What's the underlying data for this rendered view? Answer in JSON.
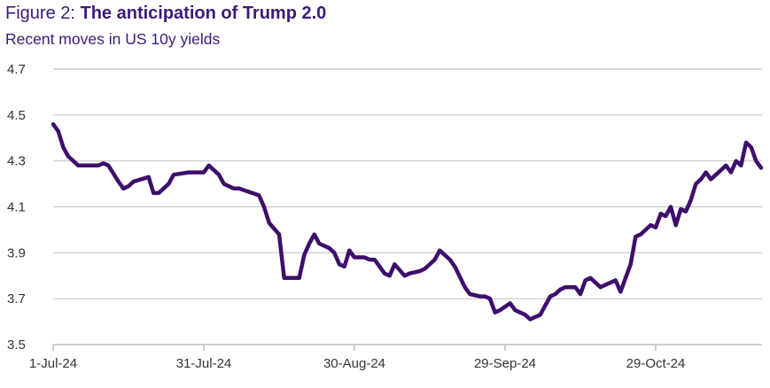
{
  "header": {
    "figure_label": "Figure 2: ",
    "title": "The anticipation of Trump 2.0",
    "subtitle": "Recent moves in US 10y yields"
  },
  "colors": {
    "accent": "#3d1a78",
    "series": "#3d0f6b",
    "grid": "#c8c8c8"
  },
  "chart_data": {
    "type": "line",
    "title": "The anticipation of Trump 2.0",
    "subtitle": "Recent moves in US 10y yields",
    "xlabel": "",
    "ylabel": "",
    "ylim": [
      3.5,
      4.7
    ],
    "yticks": [
      3.5,
      3.7,
      3.9,
      4.1,
      4.3,
      4.5,
      4.7
    ],
    "ytick_labels": [
      "3.5",
      "3.7",
      "3.9",
      "4.1",
      "4.3",
      "4.5",
      "4.7"
    ],
    "xlim": [
      0,
      141
    ],
    "xticks": [
      0,
      30,
      60,
      90,
      120
    ],
    "xtick_labels": [
      "1-Jul-24",
      "31-Jul-24",
      "30-Aug-24",
      "29-Sep-24",
      "29-Oct-24"
    ],
    "grid": true,
    "legend": "none",
    "series": [
      {
        "name": "US 10y yield",
        "x": [
          0,
          1,
          2,
          3,
          5,
          7,
          8,
          9,
          10,
          11,
          13,
          14,
          15,
          16,
          19,
          20,
          21,
          23,
          24,
          27,
          28,
          29,
          30,
          31,
          33,
          34,
          35,
          36,
          37,
          41,
          42,
          43,
          45,
          46,
          47,
          49,
          50,
          51,
          52,
          53,
          54,
          55,
          56,
          57,
          58,
          59,
          60,
          62,
          63,
          64,
          66,
          67,
          68,
          70,
          71,
          73,
          74,
          76,
          77,
          79,
          80,
          82,
          83,
          85,
          86,
          87,
          88,
          89,
          91,
          92,
          93,
          94,
          95,
          97,
          98,
          99,
          100,
          101,
          102,
          103,
          104,
          105,
          106,
          107,
          109,
          110,
          112,
          113,
          115,
          116,
          117,
          118,
          119,
          120,
          121,
          122,
          123,
          124,
          125,
          126,
          127,
          128,
          129,
          130,
          131,
          132,
          133,
          134,
          135,
          136,
          137,
          138,
          139,
          140,
          141
        ],
        "values": [
          4.46,
          4.43,
          4.36,
          4.32,
          4.28,
          4.28,
          4.28,
          4.28,
          4.29,
          4.28,
          4.21,
          4.18,
          4.19,
          4.21,
          4.23,
          4.16,
          4.16,
          4.2,
          4.24,
          4.25,
          4.25,
          4.25,
          4.25,
          4.28,
          4.24,
          4.2,
          4.19,
          4.18,
          4.18,
          4.15,
          4.1,
          4.03,
          3.98,
          3.79,
          3.79,
          3.79,
          3.89,
          3.94,
          3.98,
          3.94,
          3.93,
          3.92,
          3.9,
          3.85,
          3.84,
          3.91,
          3.88,
          3.88,
          3.87,
          3.87,
          3.81,
          3.8,
          3.85,
          3.8,
          3.81,
          3.82,
          3.83,
          3.87,
          3.91,
          3.87,
          3.84,
          3.75,
          3.72,
          3.71,
          3.71,
          3.7,
          3.64,
          3.65,
          3.68,
          3.65,
          3.64,
          3.63,
          3.61,
          3.63,
          3.67,
          3.71,
          3.72,
          3.74,
          3.75,
          3.75,
          3.75,
          3.72,
          3.78,
          3.79,
          3.75,
          3.76,
          3.78,
          3.73,
          3.85,
          3.97,
          3.98,
          4.0,
          4.02,
          4.01,
          4.07,
          4.06,
          4.1,
          4.02,
          4.09,
          4.08,
          4.13,
          4.2,
          4.22,
          4.25,
          4.22,
          4.24,
          4.26,
          4.28,
          4.25,
          4.3,
          4.28,
          4.38,
          4.36,
          4.3,
          4.27
        ],
        "color": "#3d0f6b"
      }
    ]
  }
}
